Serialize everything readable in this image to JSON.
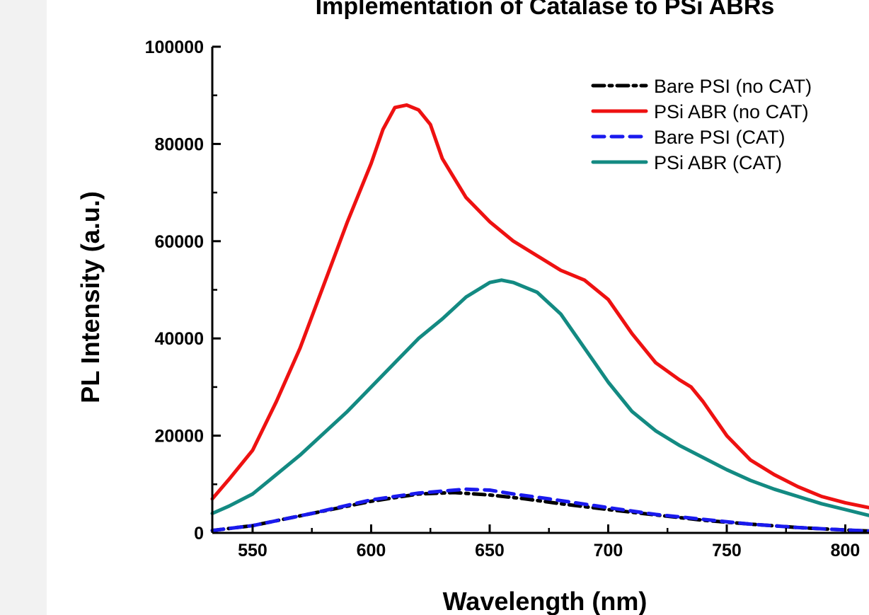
{
  "chart_data": {
    "type": "line",
    "title": "Implementation of Catalase to PSi ABRs",
    "xlabel": "Wavelength (nm)",
    "ylabel": "PL Intensity (a.u.)",
    "xlim": [
      533,
      810
    ],
    "ylim": [
      0,
      100000
    ],
    "x_ticks": [
      550,
      600,
      650,
      700,
      750,
      800
    ],
    "x_tick_labels": [
      "550",
      "600",
      "650",
      "700",
      "750",
      "800"
    ],
    "y_ticks": [
      0,
      20000,
      40000,
      60000,
      80000,
      100000
    ],
    "y_tick_labels": [
      "0",
      "20000",
      "40000",
      "60000",
      "80000",
      "100000"
    ],
    "grid": false,
    "legend_position": "top-right",
    "series": [
      {
        "name": "Bare PSI (no CAT)",
        "color": "#000000",
        "dash": "dash-dot",
        "x": [
          533,
          550,
          575,
          600,
          620,
          635,
          650,
          665,
          680,
          700,
          720,
          740,
          760,
          780,
          800,
          810
        ],
        "y": [
          500,
          1500,
          4000,
          6500,
          8000,
          8300,
          7800,
          7000,
          6000,
          4800,
          3700,
          2600,
          1800,
          1100,
          600,
          400
        ]
      },
      {
        "name": "PSi ABR (no CAT)",
        "color": "#ee1111",
        "dash": "solid",
        "x": [
          533,
          540,
          550,
          560,
          570,
          580,
          590,
          600,
          605,
          610,
          615,
          620,
          625,
          630,
          640,
          650,
          660,
          670,
          680,
          690,
          700,
          710,
          720,
          730,
          735,
          740,
          750,
          760,
          770,
          780,
          790,
          800,
          810
        ],
        "y": [
          7000,
          11000,
          17000,
          27000,
          38000,
          51000,
          64000,
          76000,
          83000,
          87500,
          88000,
          87000,
          84000,
          77000,
          69000,
          64000,
          60000,
          57000,
          54000,
          52000,
          48000,
          41000,
          35000,
          31500,
          30000,
          27000,
          20000,
          15000,
          12000,
          9500,
          7500,
          6200,
          5200
        ]
      },
      {
        "name": "Bare PSI (CAT)",
        "color": "#1a1aee",
        "dash": "dash",
        "x": [
          533,
          550,
          575,
          600,
          620,
          640,
          650,
          660,
          675,
          700,
          720,
          740,
          760,
          780,
          800,
          810
        ],
        "y": [
          500,
          1500,
          4000,
          6800,
          8200,
          9000,
          8800,
          8000,
          7000,
          5200,
          3800,
          2800,
          1800,
          1100,
          600,
          400
        ]
      },
      {
        "name": "PSi ABR (CAT)",
        "color": "#138a82",
        "dash": "solid",
        "x": [
          533,
          540,
          550,
          560,
          570,
          580,
          590,
          600,
          610,
          620,
          630,
          640,
          650,
          655,
          660,
          670,
          680,
          690,
          700,
          710,
          720,
          730,
          740,
          750,
          760,
          770,
          780,
          790,
          800,
          810
        ],
        "y": [
          4000,
          5500,
          8000,
          12000,
          16000,
          20500,
          25000,
          30000,
          35000,
          40000,
          44000,
          48500,
          51500,
          52000,
          51500,
          49500,
          45000,
          38000,
          31000,
          25000,
          21000,
          18000,
          15500,
          13000,
          10800,
          9000,
          7500,
          6000,
          4800,
          3600
        ]
      }
    ]
  }
}
